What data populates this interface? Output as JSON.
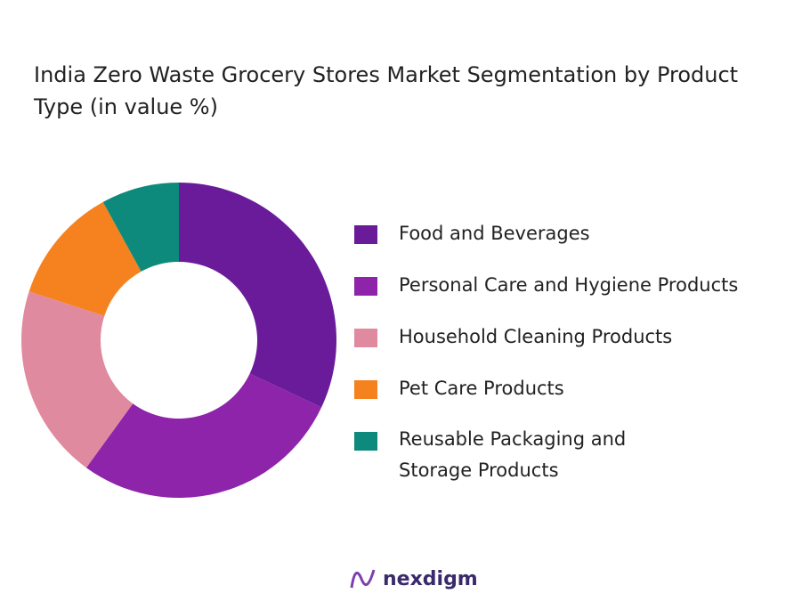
{
  "chart_data": {
    "type": "donut",
    "title": "India Zero Waste Grocery Stores Market Segmentation by Product Type  (in value %)",
    "categories": [
      "Food and Beverages",
      "Personal Care and Hygiene Products",
      "Household Cleaning Products",
      "Pet Care Products",
      "Reusable Packaging and Storage Products"
    ],
    "values": [
      32,
      28,
      20,
      12,
      8
    ],
    "colors": [
      "#6a1b9a",
      "#8e24aa",
      "#e08a9f",
      "#f5821f",
      "#0e8a7c"
    ]
  },
  "logo": "nexdigm"
}
